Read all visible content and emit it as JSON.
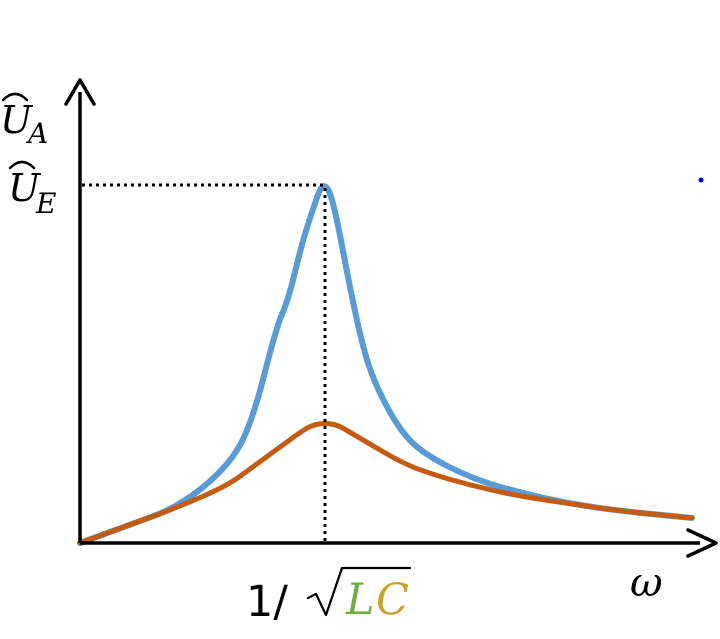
{
  "chart_data": {
    "type": "line",
    "title": "",
    "xlabel": "ω",
    "ylabel": "Û_A",
    "grid": false,
    "legend": "none",
    "ylim": [
      0,
      1.05
    ],
    "xlim": [
      0,
      2.5
    ],
    "y_reference": {
      "label_base": "U",
      "label_sub": "E",
      "value": 1.0
    },
    "x_reference": {
      "value": 1.0,
      "label_prefix": "1/",
      "label_L": "L",
      "label_C": "C"
    },
    "y_axis_label": {
      "base": "U",
      "sub": "A"
    },
    "series": [
      {
        "color": "#5b9bd5",
        "model": "resonance",
        "x": [
          0.0,
          0.2,
          0.4,
          0.6,
          0.7,
          0.8,
          0.85,
          0.9,
          0.93,
          0.96,
          0.98,
          1.0,
          1.02,
          1.04,
          1.07,
          1.1,
          1.15,
          1.2,
          1.3,
          1.4,
          1.6,
          1.8,
          2.0,
          2.2,
          2.5
        ],
        "values": [
          0.0,
          0.05,
          0.1,
          0.21,
          0.33,
          0.6,
          0.68,
          0.82,
          0.89,
          0.95,
          0.99,
          1.0,
          0.98,
          0.93,
          0.83,
          0.72,
          0.56,
          0.45,
          0.32,
          0.25,
          0.18,
          0.14,
          0.11,
          0.09,
          0.07
        ]
      },
      {
        "color": "#c55a11",
        "model": "resonance",
        "x": [
          0.0,
          0.2,
          0.4,
          0.6,
          0.7,
          0.8,
          0.9,
          0.95,
          1.0,
          1.05,
          1.1,
          1.2,
          1.3,
          1.4,
          1.6,
          1.8,
          2.0,
          2.2,
          2.5
        ],
        "values": [
          0.0,
          0.05,
          0.1,
          0.16,
          0.21,
          0.26,
          0.31,
          0.33,
          0.335,
          0.33,
          0.31,
          0.27,
          0.23,
          0.2,
          0.16,
          0.13,
          0.11,
          0.09,
          0.07
        ]
      }
    ]
  },
  "colors": {
    "axis": "#000000",
    "blue": "#5b9bd5",
    "orange": "#c55a11",
    "label_L": "#70ad47",
    "label_C": "#c9a227",
    "dot": "#0000ff"
  }
}
